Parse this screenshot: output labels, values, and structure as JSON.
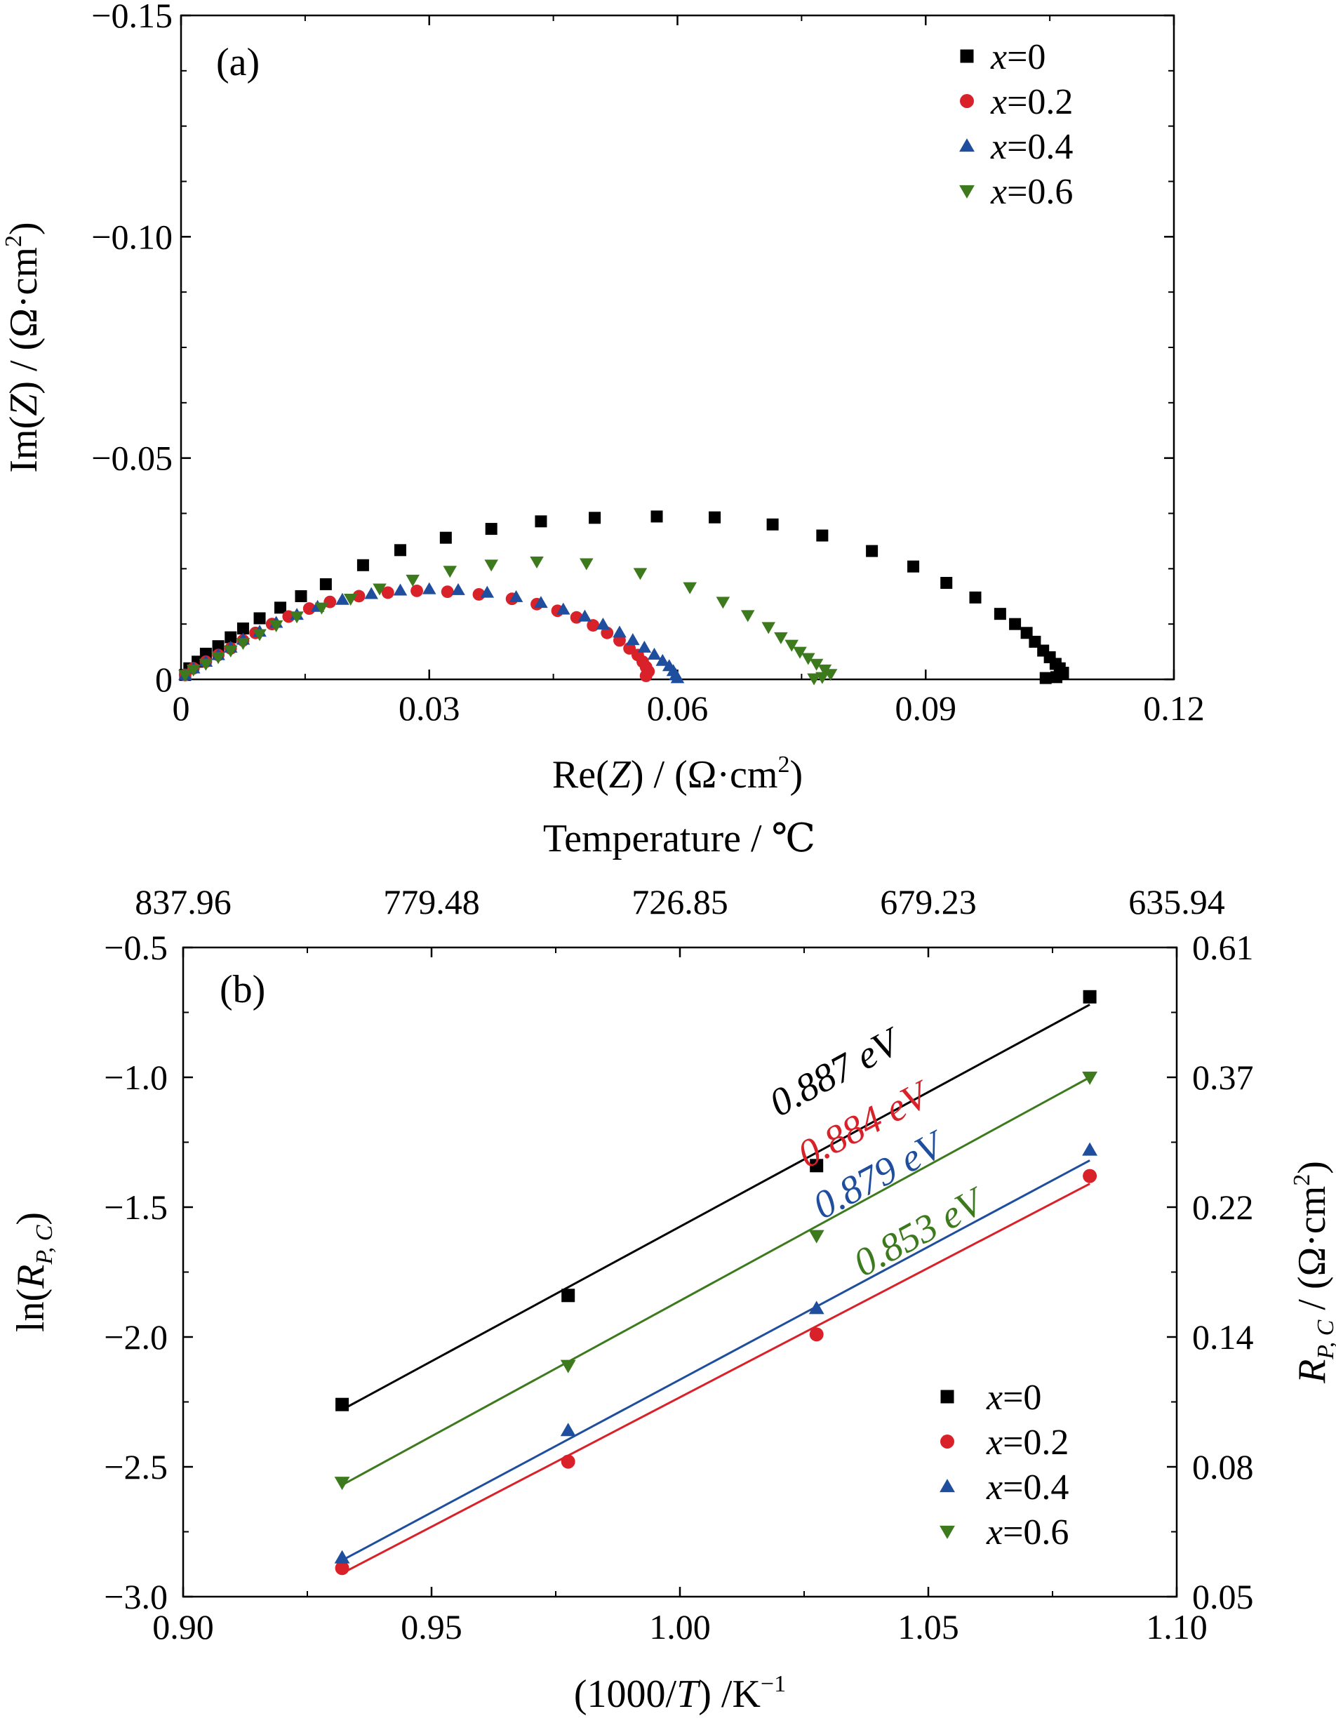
{
  "chart_data": [
    {
      "panel": "(a)",
      "type": "scatter",
      "xlabel_parts": [
        "Re(",
        "Z",
        ") / (Ω·cm",
        "2",
        ")"
      ],
      "ylabel_parts": [
        "Im(",
        "Z",
        ") / (Ω·cm",
        "2",
        ")"
      ],
      "xlim": [
        0,
        0.12
      ],
      "ylim": [
        0,
        -0.15
      ],
      "y_inverted": true,
      "xticks": [
        0,
        0.03,
        0.06,
        0.09,
        0.12
      ],
      "xtick_labels": [
        "0",
        "0.03",
        "0.06",
        "0.09",
        "0.12"
      ],
      "yticks": [
        0,
        -0.05,
        -0.1,
        -0.15
      ],
      "ytick_labels": [
        "0",
        "−0.05",
        "−0.10",
        "−0.15"
      ],
      "legend_position": "top-right",
      "series": [
        {
          "name": "x=0",
          "var": "x",
          "rest": "=0",
          "marker": "square",
          "color": "#000000",
          "x": [
            0.0005,
            0.001,
            0.002,
            0.003,
            0.0045,
            0.006,
            0.0075,
            0.0095,
            0.012,
            0.0145,
            0.0175,
            0.022,
            0.0265,
            0.032,
            0.0375,
            0.0435,
            0.05,
            0.0575,
            0.0645,
            0.0715,
            0.0775,
            0.0835,
            0.0885,
            0.0925,
            0.096,
            0.099,
            0.1008,
            0.1022,
            0.1032,
            0.1042,
            0.105,
            0.1057,
            0.1062,
            0.1066,
            0.1058,
            0.1045
          ],
          "y": [
            -0.001,
            -0.0025,
            -0.004,
            -0.0058,
            -0.0075,
            -0.0095,
            -0.0115,
            -0.0138,
            -0.0162,
            -0.0188,
            -0.0215,
            -0.0258,
            -0.0292,
            -0.032,
            -0.034,
            -0.0357,
            -0.0365,
            -0.0368,
            -0.0366,
            -0.035,
            -0.0325,
            -0.029,
            -0.0255,
            -0.0218,
            -0.0185,
            -0.0148,
            -0.0125,
            -0.0105,
            -0.0085,
            -0.0065,
            -0.005,
            -0.0035,
            -0.0025,
            -0.0015,
            -0.0005,
            -0.0003
          ]
        },
        {
          "name": "x=0.2",
          "var": "x",
          "rest": "=0.2",
          "marker": "circle",
          "color": "#d9212a",
          "x": [
            0.0005,
            0.0015,
            0.003,
            0.0045,
            0.006,
            0.0075,
            0.009,
            0.011,
            0.013,
            0.0155,
            0.018,
            0.0215,
            0.025,
            0.0285,
            0.0322,
            0.036,
            0.04,
            0.043,
            0.0455,
            0.0478,
            0.0498,
            0.0515,
            0.053,
            0.0542,
            0.0552,
            0.0558,
            0.0562,
            0.0565,
            0.0562
          ],
          "y": [
            -0.001,
            -0.0025,
            -0.004,
            -0.0055,
            -0.007,
            -0.0088,
            -0.0105,
            -0.0125,
            -0.0142,
            -0.016,
            -0.0175,
            -0.0188,
            -0.0196,
            -0.02,
            -0.0198,
            -0.0192,
            -0.0182,
            -0.017,
            -0.0155,
            -0.014,
            -0.0122,
            -0.0105,
            -0.0088,
            -0.007,
            -0.0055,
            -0.004,
            -0.0028,
            -0.0018,
            -0.0008
          ]
        },
        {
          "name": "x=0.4",
          "var": "x",
          "rest": "=0.4",
          "marker": "triangle-up",
          "color": "#1f4e9e",
          "x": [
            0.0005,
            0.0015,
            0.003,
            0.0045,
            0.006,
            0.0075,
            0.0095,
            0.0115,
            0.014,
            0.0165,
            0.0195,
            0.023,
            0.0265,
            0.03,
            0.0335,
            0.037,
            0.0405,
            0.0435,
            0.0462,
            0.0488,
            0.051,
            0.053,
            0.0546,
            0.056,
            0.0572,
            0.0582,
            0.059,
            0.0595,
            0.0598,
            0.06
          ],
          "y": [
            -0.001,
            -0.0025,
            -0.004,
            -0.0055,
            -0.0072,
            -0.009,
            -0.0108,
            -0.0128,
            -0.0146,
            -0.0164,
            -0.018,
            -0.0193,
            -0.0201,
            -0.0204,
            -0.0202,
            -0.0196,
            -0.0186,
            -0.0173,
            -0.0158,
            -0.0142,
            -0.0124,
            -0.0106,
            -0.0089,
            -0.0072,
            -0.0056,
            -0.0042,
            -0.003,
            -0.0019,
            -0.001,
            -0.0003
          ]
        },
        {
          "name": "x=0.6",
          "var": "x",
          "rest": "=0.6",
          "marker": "triangle-down",
          "color": "#3d7a1e",
          "x": [
            0.0005,
            0.0015,
            0.003,
            0.0045,
            0.006,
            0.0075,
            0.0095,
            0.0115,
            0.014,
            0.017,
            0.0205,
            0.024,
            0.028,
            0.0325,
            0.0375,
            0.043,
            0.049,
            0.0555,
            0.0615,
            0.0655,
            0.0685,
            0.071,
            0.0725,
            0.0738,
            0.0748,
            0.0758,
            0.0768,
            0.0778,
            0.0785,
            0.0775,
            0.0765
          ],
          "y": [
            -0.001,
            -0.0022,
            -0.0035,
            -0.005,
            -0.0065,
            -0.0082,
            -0.0102,
            -0.0122,
            -0.0142,
            -0.0162,
            -0.0182,
            -0.0205,
            -0.0225,
            -0.0245,
            -0.0259,
            -0.0266,
            -0.0262,
            -0.024,
            -0.0208,
            -0.0175,
            -0.0145,
            -0.0118,
            -0.0095,
            -0.0078,
            -0.0062,
            -0.0048,
            -0.0035,
            -0.0022,
            -0.0012,
            -0.0005,
            -0.0002
          ]
        }
      ]
    },
    {
      "panel": "(b)",
      "type": "scatter",
      "xlabel_parts": [
        "(1000/",
        "T",
        ") /K",
        "−1"
      ],
      "ylabel_parts": [
        "ln(",
        "R",
        "P, C",
        ")"
      ],
      "y2label_parts": [
        "R",
        "P, C",
        " / (Ω·cm",
        "2",
        ")"
      ],
      "top_axis_label": "Temperature / ℃",
      "xlim": [
        0.9,
        1.1
      ],
      "ylim": [
        -3.0,
        -0.5
      ],
      "xticks": [
        0.9,
        0.95,
        1.0,
        1.05,
        1.1
      ],
      "xtick_labels": [
        "0.90",
        "0.95",
        "1.00",
        "1.05",
        "1.10"
      ],
      "yticks": [
        -0.5,
        -1.0,
        -1.5,
        -2.0,
        -2.5,
        -3.0
      ],
      "ytick_labels": [
        "−0.5",
        "−1.0",
        "−1.5",
        "−2.0",
        "−2.5",
        "−3.0"
      ],
      "y2tick_labels": [
        "0.61",
        "0.37",
        "0.22",
        "0.14",
        "0.08",
        "0.05"
      ],
      "top_ticks_x": [
        0.9,
        0.95,
        1.0,
        1.05,
        1.1
      ],
      "top_tick_labels": [
        "837.96",
        "779.48",
        "726.85",
        "679.23",
        "635.94"
      ],
      "legend_position": "bottom-right",
      "series": [
        {
          "name": "x=0",
          "var": "x",
          "rest": "=0",
          "marker": "square",
          "color": "#000000",
          "x": [
            0.932,
            0.9775,
            1.0275,
            1.0825
          ],
          "y": [
            -2.26,
            -1.84,
            -1.34,
            -0.69
          ],
          "fit": {
            "x": [
              0.932,
              1.0825
            ],
            "y": [
              -2.28,
              -0.72
            ]
          },
          "activation_energy": "0.887 eV"
        },
        {
          "name": "x=0.2",
          "var": "x",
          "rest": "=0.2",
          "marker": "circle",
          "color": "#d9212a",
          "x": [
            0.932,
            0.9775,
            1.0275,
            1.0825
          ],
          "y": [
            -2.89,
            -2.48,
            -1.99,
            -1.38
          ],
          "fit": {
            "x": [
              0.932,
              1.0825
            ],
            "y": [
              -2.91,
              -1.41
            ]
          },
          "activation_energy": "0.884 eV"
        },
        {
          "name": "x=0.4",
          "var": "x",
          "rest": "=0.4",
          "marker": "triangle-up",
          "color": "#1f4e9e",
          "x": [
            0.932,
            0.9775,
            1.0275,
            1.0825
          ],
          "y": [
            -2.85,
            -2.36,
            -1.89,
            -1.28
          ],
          "fit": {
            "x": [
              0.932,
              1.0825
            ],
            "y": [
              -2.86,
              -1.32
            ]
          },
          "activation_energy": "0.879 eV"
        },
        {
          "name": "x=0.6",
          "var": "x",
          "rest": "=0.6",
          "marker": "triangle-down",
          "color": "#3d7a1e",
          "x": [
            0.932,
            0.9775,
            1.0275,
            1.0825
          ],
          "y": [
            -2.56,
            -2.11,
            -1.61,
            -1.0
          ],
          "fit": {
            "x": [
              0.932,
              1.0825
            ],
            "y": [
              -2.57,
              -1.0
            ]
          },
          "activation_energy": "0.853 eV"
        }
      ]
    }
  ]
}
